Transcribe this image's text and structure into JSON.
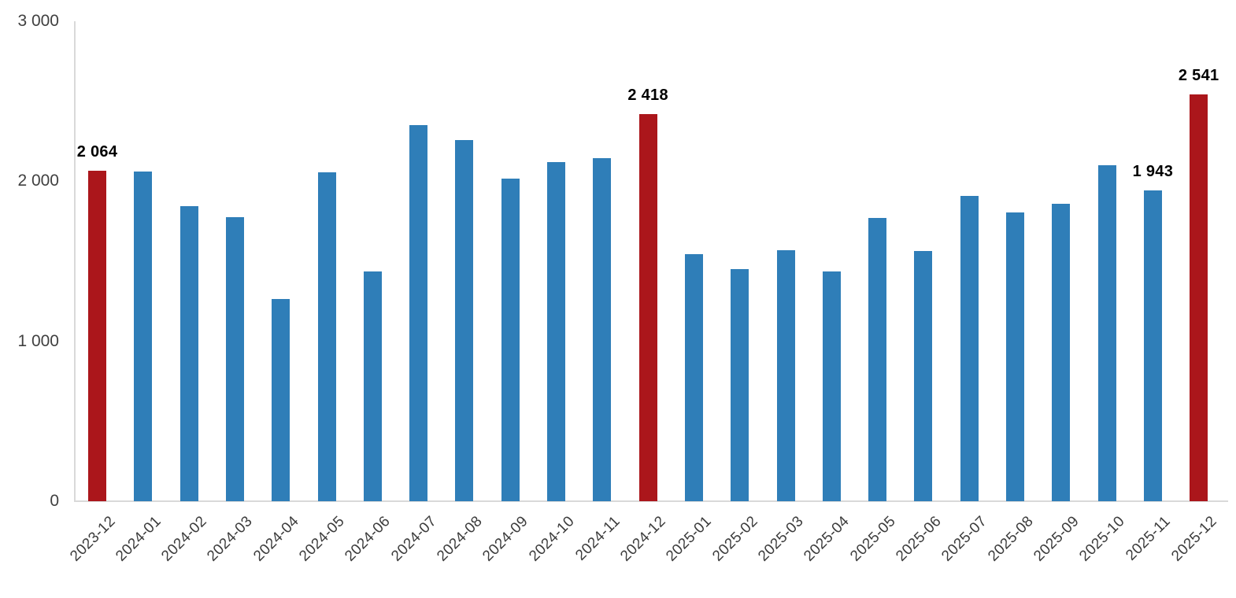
{
  "chart_data": {
    "type": "bar",
    "title": "",
    "xlabel": "",
    "ylabel": "",
    "categories": [
      "2023-12",
      "2024-01",
      "2024-02",
      "2024-03",
      "2024-04",
      "2024-05",
      "2024-06",
      "2024-07",
      "2024-08",
      "2024-09",
      "2024-10",
      "2024-11",
      "2024-12",
      "2025-01",
      "2025-02",
      "2025-03",
      "2025-04",
      "2025-05",
      "2025-06",
      "2025-07",
      "2025-08",
      "2025-09",
      "2025-10",
      "2025-11",
      "2025-12"
    ],
    "values": [
      2064,
      2060,
      1845,
      1775,
      1265,
      2055,
      1435,
      2350,
      2255,
      2015,
      2120,
      2145,
      2418,
      1545,
      1450,
      1570,
      1435,
      1770,
      1565,
      1910,
      1805,
      1860,
      2100,
      1943,
      2541
    ],
    "highlighted_indices": [
      0,
      12,
      24
    ],
    "data_labels": {
      "0": "2 064",
      "12": "2 418",
      "23": "1 943",
      "24": "2 541"
    },
    "ylim": [
      0,
      3000
    ],
    "yticks": [
      0,
      1000,
      2000,
      3000
    ],
    "ytick_labels": [
      "0",
      "1 000",
      "2 000",
      "3 000"
    ],
    "grid": false,
    "legend": null,
    "colors": {
      "bar": "#2f7eb8",
      "highlight": "#ab161b",
      "axis_line": "#d9d9d9",
      "tick_text": "#404040",
      "xtick_text": "#3c3c3c",
      "value_label_text": "#000000"
    }
  }
}
